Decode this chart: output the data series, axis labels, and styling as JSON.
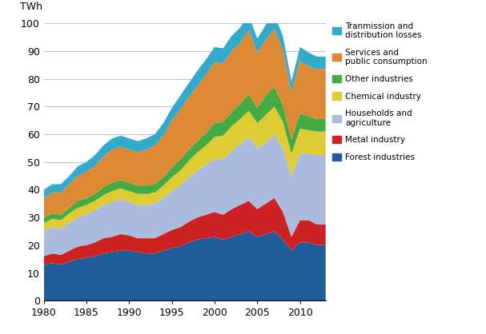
{
  "years": [
    1980,
    1981,
    1982,
    1983,
    1984,
    1985,
    1986,
    1987,
    1988,
    1989,
    1990,
    1991,
    1992,
    1993,
    1994,
    1995,
    1996,
    1997,
    1998,
    1999,
    2000,
    2001,
    2002,
    2003,
    2004,
    2005,
    2006,
    2007,
    2008,
    2009,
    2010,
    2011,
    2012,
    2013
  ],
  "forest_industries": [
    13,
    13.5,
    13,
    14,
    15,
    15.5,
    16,
    17,
    17.5,
    18,
    18,
    17.5,
    17,
    17,
    18,
    19,
    19.5,
    21,
    22,
    22.5,
    23,
    22,
    23,
    24,
    25,
    23,
    24,
    25,
    22,
    18,
    21,
    21,
    20,
    20
  ],
  "metal_industry": [
    3,
    3.5,
    3.5,
    4,
    4.5,
    4.5,
    5,
    5.5,
    5.5,
    6,
    5.5,
    5,
    5.5,
    5.5,
    6,
    6.5,
    7,
    7.5,
    8,
    8.5,
    9,
    9,
    10,
    10.5,
    11,
    10,
    11,
    12,
    10,
    5,
    8,
    8,
    7.5,
    7.5
  ],
  "households_agriculture": [
    9,
    9.5,
    9.5,
    10,
    10.5,
    11,
    11.5,
    12,
    12.5,
    12.5,
    12,
    12,
    12,
    12.5,
    13,
    14,
    15,
    16,
    17,
    18,
    19,
    20,
    21,
    22,
    23,
    22,
    22,
    23,
    23,
    22,
    24,
    24,
    25,
    25
  ],
  "chemical_industry": [
    3,
    3,
    3,
    3.5,
    3.5,
    3.5,
    3.5,
    3.5,
    4,
    4,
    4,
    4,
    4,
    4,
    4.5,
    5,
    5.5,
    6,
    6.5,
    7,
    8,
    8.5,
    9,
    9,
    9.5,
    9,
    10,
    10,
    9.5,
    8,
    9,
    8.5,
    8.5,
    8.5
  ],
  "other_industries": [
    2,
    2,
    2,
    2,
    2.5,
    2.5,
    2.5,
    3,
    3,
    3,
    3,
    3,
    3,
    3,
    3,
    3.5,
    4,
    4,
    4,
    4.5,
    5,
    5,
    5,
    5.5,
    6,
    5.5,
    7,
    7,
    6,
    5,
    5.5,
    5,
    4.5,
    4.5
  ],
  "services_public": [
    7,
    7.5,
    8,
    8.5,
    9,
    9.5,
    10,
    11,
    12,
    12,
    12,
    12,
    13,
    14,
    15,
    17,
    18,
    19,
    20,
    21,
    22,
    21,
    22,
    22,
    23,
    20,
    20,
    21,
    20,
    17,
    19,
    18,
    18,
    18
  ],
  "transmission_losses": [
    3,
    3,
    3,
    3,
    3.5,
    3.5,
    4,
    4,
    4,
    4,
    4,
    4,
    4,
    4,
    4.5,
    4.5,
    5,
    5,
    5.5,
    5.5,
    5.5,
    5.5,
    5.5,
    5.5,
    5.5,
    5,
    5.5,
    5,
    5,
    4,
    5,
    5,
    4.5,
    4.5
  ],
  "colors": {
    "forest_industries": "#1F5C99",
    "metal_industry": "#CC2222",
    "households_agriculture": "#AABBDD",
    "chemical_industry": "#DDCC33",
    "other_industries": "#44AA44",
    "services_public": "#DD8833",
    "transmission_losses": "#33AACC"
  },
  "labels": {
    "forest_industries": "Forest industries",
    "metal_industry": "Metal industry",
    "households_agriculture": "Households and\nagriculture",
    "chemical_industry": "Chemical industry",
    "other_industries": "Other industries",
    "services_public": "Services and\npublic consumption",
    "transmission_losses": "Tranmission and\ndistribution losses"
  },
  "ylabel": "TWh",
  "ylim": [
    0,
    100
  ],
  "xlim": [
    1980,
    2013
  ],
  "yticks": [
    0,
    10,
    20,
    30,
    40,
    50,
    60,
    70,
    80,
    90,
    100
  ],
  "xticks": [
    1980,
    1985,
    1990,
    1995,
    2000,
    2005,
    2010
  ],
  "figwidth": 6.07,
  "figheight": 4.18,
  "dpi": 100
}
